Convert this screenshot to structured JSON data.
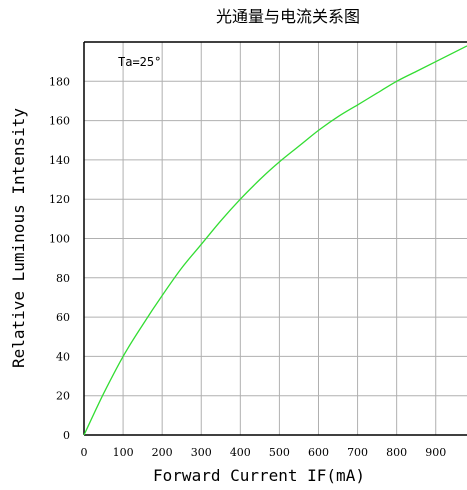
{
  "chart_data": {
    "type": "line",
    "title": "光通量与电流关系图",
    "xlabel": "Forward Current IF(mA)",
    "ylabel": "Relative Luminous Intensity",
    "annotation": "Ta=25°",
    "xlim": [
      0,
      980
    ],
    "ylim": [
      0,
      200
    ],
    "x_ticks": [
      0,
      100,
      200,
      300,
      400,
      500,
      600,
      700,
      800,
      900
    ],
    "y_ticks": [
      0,
      20,
      40,
      60,
      80,
      100,
      120,
      140,
      160,
      180
    ],
    "grid": true,
    "series": [
      {
        "color": "#33dd33",
        "x": [
          0,
          50,
          100,
          150,
          200,
          250,
          300,
          350,
          400,
          450,
          500,
          550,
          600,
          650,
          700,
          750,
          800,
          850,
          900,
          950,
          980
        ],
        "y": [
          0,
          21,
          40,
          56,
          71,
          85,
          97,
          109,
          120,
          130,
          139,
          147,
          155,
          162,
          168,
          174,
          180,
          185,
          190,
          195,
          198
        ]
      }
    ]
  }
}
